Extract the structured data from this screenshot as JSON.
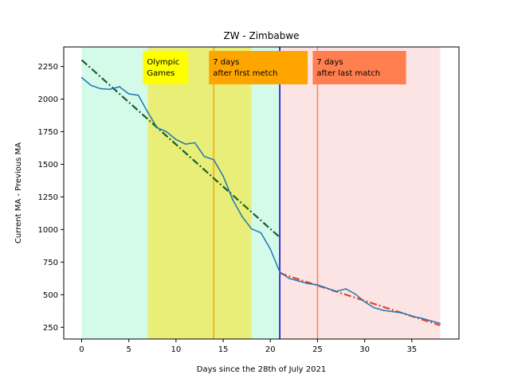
{
  "chart_data": {
    "type": "line",
    "title": "ZW - Zimbabwe",
    "xlabel": "Days since the 28th of July 2021",
    "ylabel": "Current MA - Previous MA",
    "xlim": [
      -1.9,
      40.0
    ],
    "ylim": [
      160,
      2400
    ],
    "xticks": [
      0,
      5,
      10,
      15,
      20,
      25,
      30,
      35
    ],
    "yticks": [
      250,
      500,
      750,
      1000,
      1250,
      1500,
      1750,
      2000,
      2250
    ],
    "grid": false,
    "colors": {
      "series": "#1f77b4",
      "trend_before": "#1a5e2a",
      "trend_after": "#e0452b",
      "shade_pre": "#d4fbea",
      "shade_olympics": "#e8ee78",
      "shade_mid": "#d4fbea",
      "shade_post": "#fde4e4",
      "vline_first": "#ffa500",
      "vline_end": "#0000cc",
      "vline_last": "#ff7f50"
    },
    "series": [
      {
        "x": [
          0,
          1,
          2,
          3,
          4,
          5,
          6,
          7,
          8,
          9,
          10,
          11,
          12,
          13,
          14,
          15,
          16,
          17,
          18,
          19,
          20,
          21,
          22,
          23,
          24,
          25,
          26,
          27,
          28,
          29,
          30,
          31,
          32,
          33,
          34,
          35,
          36,
          37,
          38
        ],
        "values": [
          2165,
          2105,
          2080,
          2075,
          2095,
          2040,
          2030,
          1900,
          1780,
          1750,
          1690,
          1655,
          1665,
          1560,
          1535,
          1410,
          1230,
          1100,
          1005,
          975,
          850,
          675,
          625,
          605,
          585,
          575,
          550,
          525,
          545,
          505,
          445,
          400,
          380,
          370,
          360,
          335,
          320,
          300,
          280
        ]
      }
    ],
    "trend_lines": [
      {
        "x": [
          0,
          21
        ],
        "values": [
          2300,
          940
        ]
      },
      {
        "x": [
          21,
          38
        ],
        "values": [
          665,
          265
        ]
      }
    ],
    "regions": [
      {
        "from": 0,
        "to": 7,
        "fill": "shade_pre"
      },
      {
        "from": 7,
        "to": 18,
        "fill": "shade_olympics"
      },
      {
        "from": 18,
        "to": 21,
        "fill": "shade_mid"
      },
      {
        "from": 21,
        "to": 38,
        "fill": "shade_post"
      }
    ],
    "vlines": [
      {
        "x": 14,
        "color": "vline_first"
      },
      {
        "x": 21,
        "color": "vline_end"
      },
      {
        "x": 25,
        "color": "vline_last"
      }
    ],
    "annotations": [
      {
        "lines": [
          "Olympic",
          "Games"
        ],
        "x": 7,
        "bg": "#ffff00"
      },
      {
        "lines": [
          "7 days",
          "after first metch"
        ],
        "x": 14,
        "bg": "#ffa500"
      },
      {
        "lines": [
          "7 days",
          "after last match"
        ],
        "x": 25,
        "bg": "#ff7f50"
      }
    ]
  }
}
